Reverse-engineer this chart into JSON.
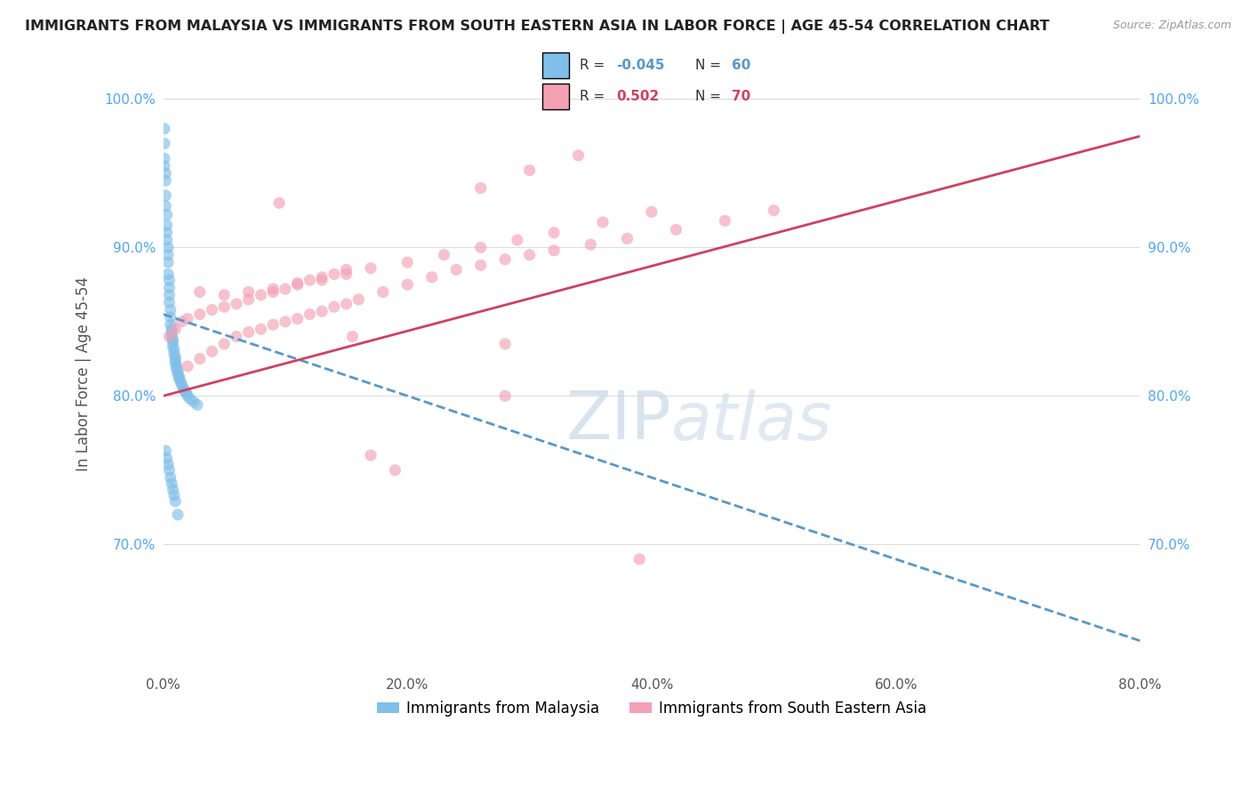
{
  "title": "IMMIGRANTS FROM MALAYSIA VS IMMIGRANTS FROM SOUTH EASTERN ASIA IN LABOR FORCE | AGE 45-54 CORRELATION CHART",
  "source": "Source: ZipAtlas.com",
  "xlabel_blue": "Immigrants from Malaysia",
  "xlabel_pink": "Immigrants from South Eastern Asia",
  "ylabel": "In Labor Force | Age 45-54",
  "R_blue": -0.045,
  "N_blue": 60,
  "R_pink": 0.502,
  "N_pink": 70,
  "blue_color": "#7fbfea",
  "pink_color": "#f4a0b5",
  "trend_blue_color": "#5599cc",
  "trend_pink_color": "#d04060",
  "xlim": [
    0.0,
    0.8
  ],
  "ylim": [
    0.615,
    1.015
  ],
  "yticks": [
    0.7,
    0.8,
    0.9,
    1.0
  ],
  "ytick_labels": [
    "70.0%",
    "80.0%",
    "90.0%",
    "100.0%"
  ],
  "xticks": [
    0.0,
    0.2,
    0.4,
    0.6,
    0.8
  ],
  "xtick_labels": [
    "0.0%",
    "20.0%",
    "40.0%",
    "60.0%",
    "80.0%"
  ],
  "blue_scatter_x": [
    0.001,
    0.001,
    0.001,
    0.001,
    0.002,
    0.002,
    0.002,
    0.002,
    0.003,
    0.003,
    0.003,
    0.003,
    0.004,
    0.004,
    0.004,
    0.004,
    0.005,
    0.005,
    0.005,
    0.005,
    0.006,
    0.006,
    0.006,
    0.007,
    0.007,
    0.007,
    0.008,
    0.008,
    0.008,
    0.009,
    0.009,
    0.01,
    0.01,
    0.01,
    0.011,
    0.011,
    0.012,
    0.012,
    0.013,
    0.013,
    0.014,
    0.015,
    0.016,
    0.017,
    0.018,
    0.019,
    0.02,
    0.022,
    0.025,
    0.028,
    0.002,
    0.003,
    0.004,
    0.005,
    0.006,
    0.007,
    0.008,
    0.009,
    0.01,
    0.012
  ],
  "blue_scatter_y": [
    0.98,
    0.97,
    0.96,
    0.955,
    0.95,
    0.945,
    0.935,
    0.928,
    0.922,
    0.915,
    0.91,
    0.905,
    0.9,
    0.895,
    0.89,
    0.882,
    0.878,
    0.873,
    0.868,
    0.863,
    0.858,
    0.853,
    0.848,
    0.845,
    0.843,
    0.84,
    0.838,
    0.836,
    0.833,
    0.831,
    0.828,
    0.826,
    0.824,
    0.822,
    0.82,
    0.818,
    0.817,
    0.815,
    0.813,
    0.812,
    0.81,
    0.808,
    0.806,
    0.804,
    0.803,
    0.802,
    0.8,
    0.798,
    0.796,
    0.794,
    0.763,
    0.758,
    0.754,
    0.75,
    0.745,
    0.741,
    0.737,
    0.733,
    0.729,
    0.72
  ],
  "pink_scatter_x": [
    0.005,
    0.01,
    0.015,
    0.02,
    0.03,
    0.04,
    0.05,
    0.06,
    0.07,
    0.08,
    0.09,
    0.1,
    0.11,
    0.12,
    0.13,
    0.14,
    0.02,
    0.03,
    0.04,
    0.05,
    0.06,
    0.07,
    0.08,
    0.09,
    0.1,
    0.11,
    0.12,
    0.13,
    0.14,
    0.15,
    0.16,
    0.18,
    0.2,
    0.22,
    0.24,
    0.26,
    0.28,
    0.3,
    0.32,
    0.35,
    0.38,
    0.42,
    0.46,
    0.5,
    0.03,
    0.05,
    0.07,
    0.09,
    0.11,
    0.13,
    0.15,
    0.17,
    0.2,
    0.23,
    0.26,
    0.29,
    0.32,
    0.36,
    0.4,
    0.26,
    0.3,
    0.34,
    0.28,
    0.19,
    0.155,
    0.28,
    0.095,
    0.17,
    0.39,
    0.15
  ],
  "pink_scatter_y": [
    0.84,
    0.845,
    0.85,
    0.852,
    0.855,
    0.858,
    0.86,
    0.862,
    0.865,
    0.868,
    0.87,
    0.872,
    0.875,
    0.878,
    0.88,
    0.882,
    0.82,
    0.825,
    0.83,
    0.835,
    0.84,
    0.843,
    0.845,
    0.848,
    0.85,
    0.852,
    0.855,
    0.857,
    0.86,
    0.862,
    0.865,
    0.87,
    0.875,
    0.88,
    0.885,
    0.888,
    0.892,
    0.895,
    0.898,
    0.902,
    0.906,
    0.912,
    0.918,
    0.925,
    0.87,
    0.868,
    0.87,
    0.872,
    0.876,
    0.878,
    0.882,
    0.886,
    0.89,
    0.895,
    0.9,
    0.905,
    0.91,
    0.917,
    0.924,
    0.94,
    0.952,
    0.962,
    0.8,
    0.75,
    0.84,
    0.835,
    0.93,
    0.76,
    0.69,
    0.885
  ],
  "blue_trend_x0": 0.0,
  "blue_trend_y0": 0.855,
  "blue_trend_x1": 0.8,
  "blue_trend_y1": 0.635,
  "pink_trend_x0": 0.0,
  "pink_trend_y0": 0.8,
  "pink_trend_x1": 0.8,
  "pink_trend_y1": 0.975,
  "background_color": "#ffffff",
  "grid_color": "#dddddd"
}
